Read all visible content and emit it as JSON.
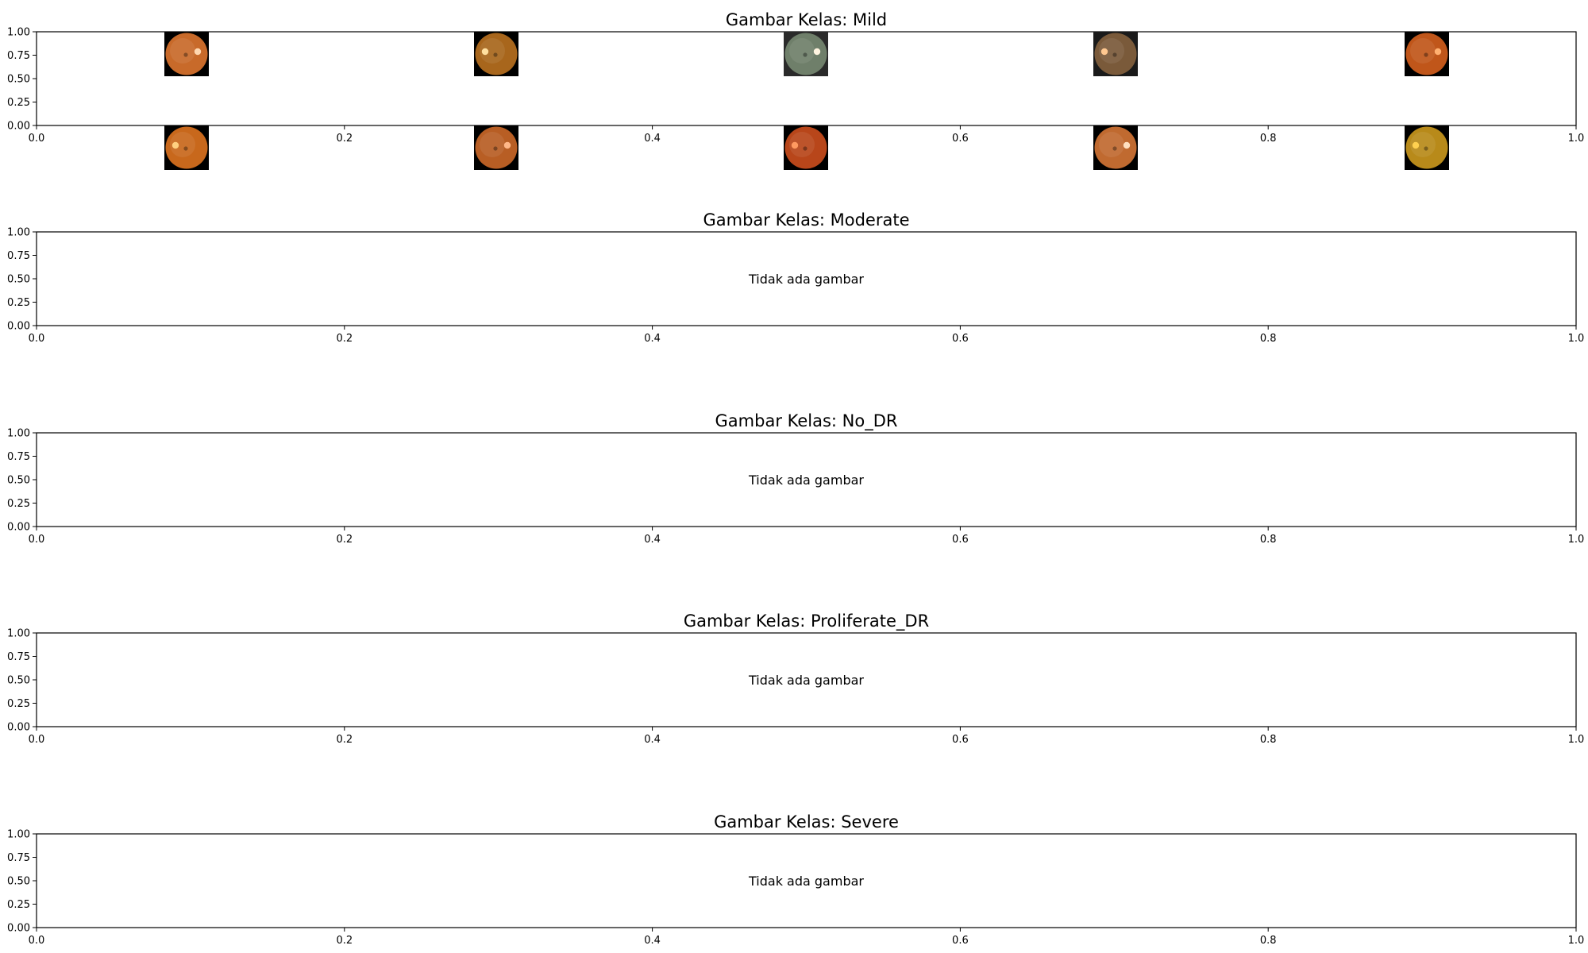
{
  "chart_data": [
    {
      "type": "image-grid",
      "title": "Gambar Kelas: Mild",
      "xlim": [
        0.0,
        1.0
      ],
      "ylim": [
        0.0,
        1.0
      ],
      "x_ticks": [
        "0.0",
        "0.2",
        "0.4",
        "0.6",
        "0.8",
        "1.0"
      ],
      "y_ticks": [
        "0.00",
        "0.25",
        "0.50",
        "0.75",
        "1.00"
      ],
      "grid": false,
      "images": [
        {
          "row": 0,
          "col": 0,
          "bg": "#000000",
          "fundus": "#c86a2a",
          "disc": "#ffd8b0"
        },
        {
          "row": 0,
          "col": 1,
          "bg": "#000000",
          "fundus": "#a8661c",
          "disc": "#ffe0a0"
        },
        {
          "row": 0,
          "col": 2,
          "bg": "#2a2a2a",
          "fundus": "#6f7f6a",
          "disc": "#fff4e0"
        },
        {
          "row": 0,
          "col": 3,
          "bg": "#1a1a1a",
          "fundus": "#7a5a3a",
          "disc": "#ffc890"
        },
        {
          "row": 0,
          "col": 4,
          "bg": "#000000",
          "fundus": "#c0561a",
          "disc": "#ffb070"
        },
        {
          "row": 1,
          "col": 0,
          "bg": "#000000",
          "fundus": "#c8681c",
          "disc": "#ffd080"
        },
        {
          "row": 1,
          "col": 1,
          "bg": "#000000",
          "fundus": "#b85e24",
          "disc": "#ffb888"
        },
        {
          "row": 1,
          "col": 2,
          "bg": "#000000",
          "fundus": "#b8461a",
          "disc": "#ff9a60"
        },
        {
          "row": 1,
          "col": 3,
          "bg": "#000000",
          "fundus": "#c06a30",
          "disc": "#ffe0c0"
        },
        {
          "row": 1,
          "col": 4,
          "bg": "#000000",
          "fundus": "#b88a1a",
          "disc": "#ffd050"
        }
      ]
    },
    {
      "type": "empty",
      "title": "Gambar Kelas: Moderate",
      "message": "Tidak ada gambar",
      "xlim": [
        0.0,
        1.0
      ],
      "ylim": [
        0.0,
        1.0
      ],
      "x_ticks": [
        "0.0",
        "0.2",
        "0.4",
        "0.6",
        "0.8",
        "1.0"
      ],
      "y_ticks": [
        "0.00",
        "0.25",
        "0.50",
        "0.75",
        "1.00"
      ],
      "grid": false
    },
    {
      "type": "empty",
      "title": "Gambar Kelas: No_DR",
      "message": "Tidak ada gambar",
      "xlim": [
        0.0,
        1.0
      ],
      "ylim": [
        0.0,
        1.0
      ],
      "x_ticks": [
        "0.0",
        "0.2",
        "0.4",
        "0.6",
        "0.8",
        "1.0"
      ],
      "y_ticks": [
        "0.00",
        "0.25",
        "0.50",
        "0.75",
        "1.00"
      ],
      "grid": false
    },
    {
      "type": "empty",
      "title": "Gambar Kelas: Proliferate_DR",
      "message": "Tidak ada gambar",
      "xlim": [
        0.0,
        1.0
      ],
      "ylim": [
        0.0,
        1.0
      ],
      "x_ticks": [
        "0.0",
        "0.2",
        "0.4",
        "0.6",
        "0.8",
        "1.0"
      ],
      "y_ticks": [
        "0.00",
        "0.25",
        "0.50",
        "0.75",
        "1.00"
      ],
      "grid": false
    },
    {
      "type": "empty",
      "title": "Gambar Kelas: Severe",
      "message": "Tidak ada gambar",
      "xlim": [
        0.0,
        1.0
      ],
      "ylim": [
        0.0,
        1.0
      ],
      "x_ticks": [
        "0.0",
        "0.2",
        "0.4",
        "0.6",
        "0.8",
        "1.0"
      ],
      "y_ticks": [
        "0.00",
        "0.25",
        "0.50",
        "0.75",
        "1.00"
      ],
      "grid": false
    }
  ]
}
